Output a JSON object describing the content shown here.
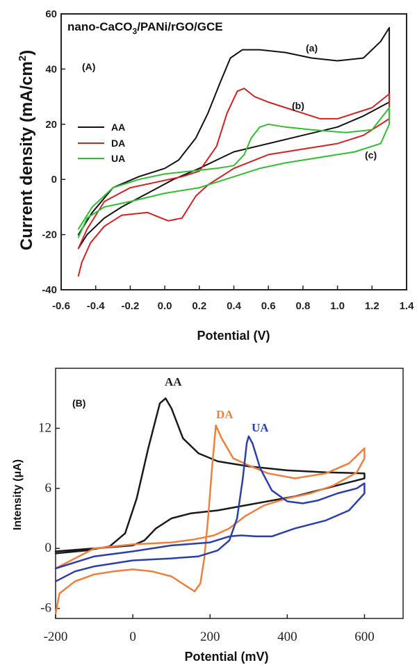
{
  "chart_data": [
    {
      "type": "line",
      "title": "nano-CaCO3/PANi/rGO/GCE",
      "panel_label": "(A)",
      "xlabel": "Potential (V)",
      "ylabel": "Current density (mA/cm2)",
      "xlim": [
        -0.6,
        1.4
      ],
      "ylim": [
        -40,
        60
      ],
      "xticks": [
        "-0.6",
        "-0.4",
        "-0.2",
        "0.0",
        "0.2",
        "0.4",
        "0.6",
        "0.8",
        "1.0",
        "1.2",
        "1.4"
      ],
      "yticks": [
        "-40",
        "-20",
        "0",
        "20",
        "40",
        "60"
      ],
      "legend_position": "left",
      "curve_labels": [
        "(a)",
        "(b)",
        "(c)"
      ],
      "series": [
        {
          "name": "AA",
          "color": "#111111",
          "points": [
            [
              -0.5,
              -25
            ],
            [
              -0.45,
              -20
            ],
            [
              -0.35,
              -14
            ],
            [
              -0.25,
              -10
            ],
            [
              -0.1,
              -5
            ],
            [
              0.05,
              0
            ],
            [
              0.2,
              4
            ],
            [
              0.3,
              7
            ],
            [
              0.4,
              10
            ],
            [
              0.6,
              13
            ],
            [
              0.8,
              16
            ],
            [
              1.0,
              19
            ],
            [
              1.15,
              23
            ],
            [
              1.3,
              28
            ],
            [
              1.3,
              55
            ],
            [
              1.25,
              50
            ],
            [
              1.15,
              44
            ],
            [
              1.0,
              43
            ],
            [
              0.85,
              44
            ],
            [
              0.7,
              46
            ],
            [
              0.55,
              47
            ],
            [
              0.45,
              47
            ],
            [
              0.38,
              44
            ],
            [
              0.32,
              35
            ],
            [
              0.25,
              24
            ],
            [
              0.18,
              15
            ],
            [
              0.08,
              7
            ],
            [
              0,
              4
            ],
            [
              -0.15,
              1
            ],
            [
              -0.3,
              -3
            ],
            [
              -0.42,
              -12
            ],
            [
              -0.5,
              -20
            ]
          ]
        },
        {
          "name": "DA",
          "color": "#d62020",
          "points": [
            [
              -0.5,
              -35
            ],
            [
              -0.48,
              -30
            ],
            [
              -0.43,
              -23
            ],
            [
              -0.35,
              -17
            ],
            [
              -0.25,
              -13
            ],
            [
              -0.1,
              -12
            ],
            [
              0.02,
              -15
            ],
            [
              0.1,
              -14
            ],
            [
              0.18,
              -6
            ],
            [
              0.25,
              -2
            ],
            [
              0.4,
              4
            ],
            [
              0.6,
              9
            ],
            [
              0.8,
              11
            ],
            [
              1.0,
              13
            ],
            [
              1.15,
              16
            ],
            [
              1.3,
              22
            ],
            [
              1.3,
              31
            ],
            [
              1.2,
              26
            ],
            [
              1.0,
              22
            ],
            [
              0.9,
              22
            ],
            [
              0.8,
              24
            ],
            [
              0.7,
              26
            ],
            [
              0.6,
              28
            ],
            [
              0.52,
              30
            ],
            [
              0.46,
              33
            ],
            [
              0.42,
              32
            ],
            [
              0.36,
              24
            ],
            [
              0.3,
              12
            ],
            [
              0.2,
              3
            ],
            [
              0.1,
              1
            ],
            [
              -0.05,
              -1
            ],
            [
              -0.2,
              -3
            ],
            [
              -0.35,
              -8
            ],
            [
              -0.45,
              -18
            ],
            [
              -0.5,
              -25
            ]
          ]
        },
        {
          "name": "UA",
          "color": "#2fbf2f",
          "points": [
            [
              -0.5,
              -21
            ],
            [
              -0.45,
              -14
            ],
            [
              -0.35,
              -10
            ],
            [
              -0.2,
              -8
            ],
            [
              0,
              -5
            ],
            [
              0.2,
              -3
            ],
            [
              0.35,
              0
            ],
            [
              0.45,
              2
            ],
            [
              0.55,
              4
            ],
            [
              0.7,
              6
            ],
            [
              0.9,
              8
            ],
            [
              1.1,
              10
            ],
            [
              1.25,
              13
            ],
            [
              1.3,
              20
            ],
            [
              1.3,
              26
            ],
            [
              1.2,
              18
            ],
            [
              1.05,
              17
            ],
            [
              0.85,
              18
            ],
            [
              0.7,
              19
            ],
            [
              0.6,
              20
            ],
            [
              0.55,
              19
            ],
            [
              0.5,
              15
            ],
            [
              0.46,
              9
            ],
            [
              0.4,
              5
            ],
            [
              0.3,
              4
            ],
            [
              0.15,
              3
            ],
            [
              0,
              2
            ],
            [
              -0.15,
              0
            ],
            [
              -0.3,
              -3
            ],
            [
              -0.42,
              -10
            ],
            [
              -0.5,
              -18
            ]
          ]
        }
      ]
    },
    {
      "type": "line",
      "panel_label": "(B)",
      "xlabel": "Potential (mV)",
      "ylabel": "Intensity (μA)",
      "xlim": [
        -200,
        700
      ],
      "ylim": [
        -7,
        18
      ],
      "xticks": [
        "-200",
        "0",
        "200",
        "400",
        "600"
      ],
      "yticks": [
        "-6",
        "0",
        "6",
        "12"
      ],
      "series": [
        {
          "name": "AA",
          "color": "#1a1a1a",
          "points": [
            [
              -200,
              -0.5
            ],
            [
              -120,
              -0.2
            ],
            [
              -60,
              0.2
            ],
            [
              -20,
              1.5
            ],
            [
              10,
              5
            ],
            [
              40,
              10
            ],
            [
              70,
              14.5
            ],
            [
              85,
              15
            ],
            [
              100,
              14
            ],
            [
              130,
              11
            ],
            [
              170,
              9.5
            ],
            [
              220,
              8.7
            ],
            [
              300,
              8.2
            ],
            [
              400,
              7.8
            ],
            [
              500,
              7.6
            ],
            [
              600,
              7.5
            ],
            [
              600,
              7.0
            ],
            [
              500,
              6.0
            ],
            [
              420,
              5.2
            ],
            [
              320,
              4.5
            ],
            [
              220,
              3.8
            ],
            [
              150,
              3.5
            ],
            [
              100,
              3
            ],
            [
              60,
              2
            ],
            [
              30,
              0.8
            ],
            [
              0,
              0.3
            ],
            [
              -100,
              0
            ],
            [
              -200,
              -0.3
            ]
          ]
        },
        {
          "name": "DA",
          "color": "#f07f3c",
          "points": [
            [
              -200,
              -6.5
            ],
            [
              -190,
              -4.5
            ],
            [
              -150,
              -3.3
            ],
            [
              -100,
              -2.6
            ],
            [
              -50,
              -2.3
            ],
            [
              0,
              -2.1
            ],
            [
              50,
              -2.3
            ],
            [
              100,
              -2.8
            ],
            [
              140,
              -3.8
            ],
            [
              160,
              -4.3
            ],
            [
              175,
              -3.5
            ],
            [
              185,
              -1
            ],
            [
              195,
              3
            ],
            [
              205,
              8
            ],
            [
              215,
              12.3
            ],
            [
              230,
              11
            ],
            [
              260,
              9
            ],
            [
              300,
              8.3
            ],
            [
              350,
              7.5
            ],
            [
              420,
              7.0
            ],
            [
              500,
              7.5
            ],
            [
              560,
              8.5
            ],
            [
              600,
              10
            ],
            [
              600,
              9
            ],
            [
              580,
              7.6
            ],
            [
              520,
              6.3
            ],
            [
              460,
              5.5
            ],
            [
              400,
              5.0
            ],
            [
              340,
              4.3
            ],
            [
              290,
              3.2
            ],
            [
              250,
              2
            ],
            [
              210,
              1.3
            ],
            [
              160,
              0.9
            ],
            [
              100,
              0.6
            ],
            [
              0,
              0.4
            ],
            [
              -100,
              0
            ],
            [
              -200,
              -2
            ]
          ]
        },
        {
          "name": "UA",
          "color": "#2a3fae",
          "points": [
            [
              -200,
              -3.3
            ],
            [
              -150,
              -2.3
            ],
            [
              -100,
              -1.8
            ],
            [
              0,
              -1.2
            ],
            [
              100,
              -1
            ],
            [
              170,
              -0.8
            ],
            [
              220,
              -0.2
            ],
            [
              250,
              0.8
            ],
            [
              270,
              3
            ],
            [
              285,
              7
            ],
            [
              295,
              10.5
            ],
            [
              300,
              11.2
            ],
            [
              310,
              10.5
            ],
            [
              330,
              8
            ],
            [
              360,
              5.8
            ],
            [
              400,
              4.7
            ],
            [
              440,
              4.5
            ],
            [
              480,
              4.8
            ],
            [
              530,
              5.5
            ],
            [
              580,
              6.0
            ],
            [
              600,
              6.5
            ],
            [
              600,
              5.5
            ],
            [
              560,
              3.8
            ],
            [
              500,
              2.8
            ],
            [
              420,
              2.0
            ],
            [
              360,
              1.2
            ],
            [
              320,
              1.2
            ],
            [
              280,
              1.3
            ],
            [
              250,
              1.2
            ],
            [
              200,
              0.6
            ],
            [
              100,
              0.3
            ],
            [
              0,
              -0.3
            ],
            [
              -100,
              -0.8
            ],
            [
              -200,
              -2
            ]
          ]
        }
      ]
    }
  ]
}
